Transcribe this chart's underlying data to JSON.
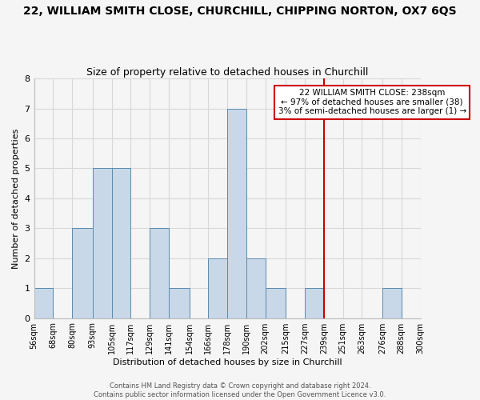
{
  "title": "22, WILLIAM SMITH CLOSE, CHURCHILL, CHIPPING NORTON, OX7 6QS",
  "subtitle": "Size of property relative to detached houses in Churchill",
  "xlabel": "Distribution of detached houses by size in Churchill",
  "ylabel": "Number of detached properties",
  "footer_line1": "Contains HM Land Registry data © Crown copyright and database right 2024.",
  "footer_line2": "Contains public sector information licensed under the Open Government Licence v3.0.",
  "bin_edges": [
    56,
    68,
    80,
    93,
    105,
    117,
    129,
    141,
    154,
    166,
    178,
    190,
    202,
    215,
    227,
    239,
    251,
    263,
    276,
    288,
    300
  ],
  "bin_labels": [
    "56sqm",
    "68sqm",
    "80sqm",
    "93sqm",
    "105sqm",
    "117sqm",
    "129sqm",
    "141sqm",
    "154sqm",
    "166sqm",
    "178sqm",
    "190sqm",
    "202sqm",
    "215sqm",
    "227sqm",
    "239sqm",
    "251sqm",
    "263sqm",
    "276sqm",
    "288sqm",
    "300sqm"
  ],
  "counts": [
    1,
    0,
    3,
    5,
    5,
    0,
    3,
    1,
    0,
    2,
    7,
    2,
    1,
    0,
    1,
    0,
    0,
    0,
    1,
    0
  ],
  "bar_color": "#c8d8e8",
  "bar_edge_color": "#5a8ab0",
  "vline_x": 239,
  "vline_color": "#cc0000",
  "annotation_line1": "22 WILLIAM SMITH CLOSE: 238sqm",
  "annotation_line2": "← 97% of detached houses are smaller (38)",
  "annotation_line3": "3% of semi-detached houses are larger (1) →",
  "annotation_box_edgecolor": "#cc0000",
  "annotation_box_facecolor": "#ffffff",
  "ylim": [
    0,
    8
  ],
  "yticks": [
    0,
    1,
    2,
    3,
    4,
    5,
    6,
    7,
    8
  ],
  "grid_color": "#d8d8d8",
  "background_color": "#f5f5f5",
  "title_fontsize": 10,
  "subtitle_fontsize": 9,
  "xlabel_fontsize": 8,
  "ylabel_fontsize": 8,
  "tick_fontsize": 7,
  "footer_fontsize": 6
}
